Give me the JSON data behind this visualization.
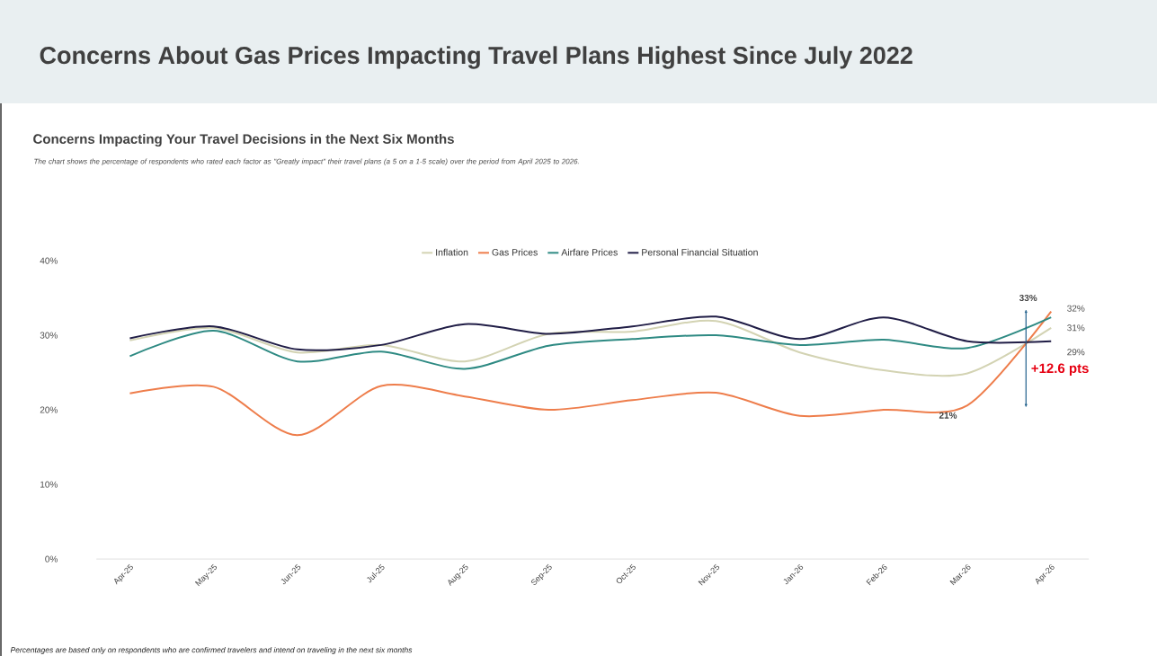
{
  "chart_data": {
    "type": "line",
    "title": "Concerns About Gas Prices Impacting Travel Plans Highest Since July 2022",
    "subtitle": "Concerns Impacting Your Travel Decisions in the Next Six Months",
    "annotations": [
      "The chart shows the percentage of respondents who rated each factor as \"Greatly impact\" their travel plans (a 5 on a 1-5 scale) over the period from April 2025 to 2026.",
      "+12.6 pts",
      "Percentages are based only on respondents who are confirmed travelers and intend on traveling in the next six months"
    ],
    "categories": [
      "Apr-25",
      "May-25",
      "Jun-25",
      "Jul-25",
      "Aug-25",
      "Sep-25",
      "Oct-25",
      "Nov-25",
      "Jan-26",
      "Feb-26",
      "Mar-26",
      "Apr-26"
    ],
    "series": [
      {
        "name": "Inflation",
        "color": "#d3d3b3",
        "values": [
          29.3,
          31,
          27.7,
          28.7,
          26.5,
          30.2,
          30.5,
          31.9,
          27.7,
          25.3,
          24.9,
          31
        ],
        "value_labels": [
          null,
          null,
          null,
          null,
          null,
          null,
          null,
          null,
          null,
          null,
          null,
          "31%"
        ]
      },
      {
        "name": "Gas Prices",
        "color": "#ee7d4b",
        "values": [
          22.2,
          23.1,
          16.6,
          23.2,
          21.8,
          20,
          21.3,
          22.3,
          19.2,
          20,
          20.6,
          33.2
        ],
        "value_labels": [
          null,
          null,
          null,
          null,
          null,
          null,
          null,
          null,
          null,
          null,
          "21%",
          "33%"
        ]
      },
      {
        "name": "Airfare Prices",
        "color": "#2e8a83",
        "values": [
          27.2,
          30.6,
          26.5,
          27.8,
          25.5,
          28.6,
          29.5,
          30,
          28.7,
          29.4,
          28.3,
          32.4
        ],
        "value_labels": [
          null,
          null,
          null,
          null,
          null,
          null,
          null,
          null,
          null,
          null,
          null,
          "32%"
        ]
      },
      {
        "name": "Personal Financial Situation",
        "color": "#201d46",
        "values": [
          29.6,
          31.2,
          28.1,
          28.7,
          31.5,
          30.2,
          31.2,
          32.5,
          29.5,
          32.4,
          29.2,
          29.2
        ],
        "value_labels": [
          null,
          null,
          null,
          null,
          null,
          null,
          null,
          null,
          null,
          null,
          null,
          "29%"
        ]
      }
    ],
    "ylim": [
      0,
      40
    ],
    "yticks": [
      {
        "value": 0,
        "label": "0%"
      },
      {
        "value": 10,
        "label": "10%"
      },
      {
        "value": 20,
        "label": "20%"
      },
      {
        "value": 30,
        "label": "30%"
      },
      {
        "value": 40,
        "label": "40%"
      }
    ],
    "legend": "top",
    "grid": false,
    "marker": "none",
    "line_style": "solid"
  }
}
